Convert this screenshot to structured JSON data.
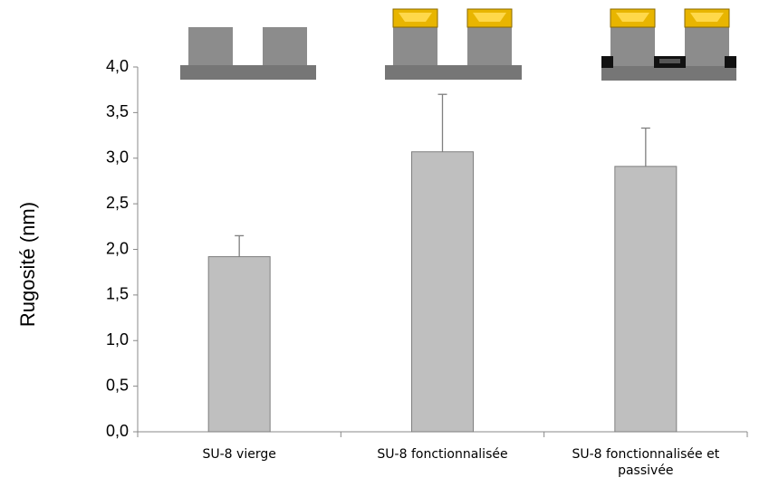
{
  "chart_data": {
    "type": "bar",
    "y_label": "Rugosité (nm)",
    "categories": [
      "SU-8 vierge",
      "SU-8 fonctionnalisée",
      "SU-8 fonctionnalisée et passivée"
    ],
    "values": [
      1.92,
      3.07,
      2.91
    ],
    "errors": [
      0.23,
      0.63,
      0.42
    ],
    "color": "#bfbfbf",
    "ylim": [
      0,
      4
    ],
    "yticks": [
      {
        "value": 0,
        "label": "0,0"
      },
      {
        "value": 0.5,
        "label": "0,5"
      },
      {
        "value": 1,
        "label": "1,0"
      },
      {
        "value": 1.5,
        "label": "1,5"
      },
      {
        "value": 2,
        "label": "2,0"
      },
      {
        "value": 2.5,
        "label": "2,5"
      },
      {
        "value": 3,
        "label": "3,0"
      },
      {
        "value": 3.5,
        "label": "3,5"
      },
      {
        "value": 4,
        "label": "4,0"
      }
    ],
    "grid": false
  }
}
